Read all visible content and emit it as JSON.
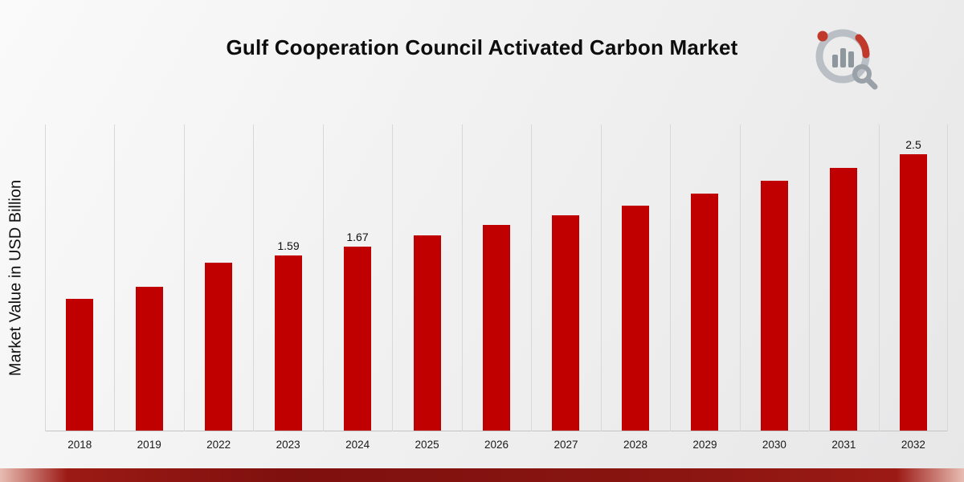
{
  "title": "Gulf Cooperation Council Activated Carbon Market",
  "ylabel": "Market Value in USD Billion",
  "logo": {
    "name": "market-research-logo"
  },
  "chart_data": {
    "type": "bar",
    "title": "Gulf Cooperation Council Activated Carbon Market",
    "xlabel": "",
    "ylabel": "Market Value in USD Billion",
    "categories": [
      "2018",
      "2019",
      "2022",
      "2023",
      "2024",
      "2025",
      "2026",
      "2027",
      "2028",
      "2029",
      "2030",
      "2031",
      "2032"
    ],
    "values": [
      1.19,
      1.3,
      1.52,
      1.59,
      1.67,
      1.77,
      1.86,
      1.95,
      2.04,
      2.15,
      2.26,
      2.38,
      2.5
    ],
    "data_labels": [
      "",
      "",
      "",
      "1.59",
      "1.67",
      "",
      "",
      "",
      "",
      "",
      "",
      "",
      "2.5"
    ],
    "bar_color": "#C00000",
    "ylim": [
      0,
      2.78
    ],
    "grid": "vertical-only",
    "legend": "none"
  }
}
